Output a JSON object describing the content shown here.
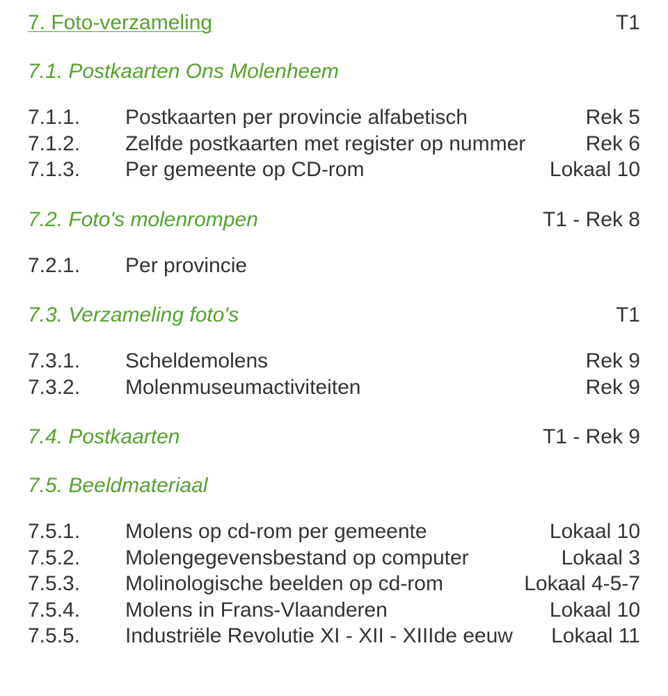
{
  "colors": {
    "green": "#55a22c",
    "text": "#333333",
    "background": "#ffffff"
  },
  "typography": {
    "body_fontsize_pt": 22,
    "font_family": "Segoe UI / Myriad Pro"
  },
  "section": {
    "num_title": "7. Foto-verzameling",
    "right": "T1"
  },
  "sub1": {
    "title": "7.1. Postkaarten Ons Molenheem",
    "right": "",
    "entries": [
      {
        "num": "7.1.1.",
        "label": "Postkaarten per provincie alfabetisch",
        "right": "Rek 5"
      },
      {
        "num": "7.1.2.",
        "label": "Zelfde postkaarten met register op nummer",
        "right": "Rek 6"
      },
      {
        "num": "7.1.3.",
        "label": "Per gemeente op CD-rom",
        "right": "Lokaal 10"
      }
    ]
  },
  "sub2": {
    "title": "7.2. Foto's molenrompen",
    "right": "T1 - Rek 8",
    "entries": [
      {
        "num": "7.2.1.",
        "label": "Per provincie",
        "right": ""
      }
    ]
  },
  "sub3": {
    "title": "7.3. Verzameling foto's",
    "right": "T1",
    "entries": [
      {
        "num": "7.3.1.",
        "label": "Scheldemolens",
        "right": "Rek 9"
      },
      {
        "num": "7.3.2.",
        "label": "Molenmuseumactiviteiten",
        "right": "Rek 9"
      }
    ]
  },
  "sub4": {
    "title": "7.4. Postkaarten",
    "right": "T1 - Rek 9"
  },
  "sub5": {
    "title": "7.5. Beeldmateriaal",
    "right": "",
    "entries": [
      {
        "num": "7.5.1.",
        "label": "Molens op cd-rom per gemeente",
        "right": "Lokaal 10"
      },
      {
        "num": "7.5.2.",
        "label": "Molengegevensbestand op computer",
        "right": "Lokaal 3"
      },
      {
        "num": "7.5.3.",
        "label": "Molinologische beelden op cd-rom",
        "right": "Lokaal 4-5-7"
      },
      {
        "num": "7.5.4.",
        "label": "Molens in Frans-Vlaanderen",
        "right": "Lokaal 10"
      },
      {
        "num": "7.5.5.",
        "label": "Industriële Revolutie XI - XII - XIIIde eeuw",
        "right": "Lokaal 11"
      }
    ]
  }
}
